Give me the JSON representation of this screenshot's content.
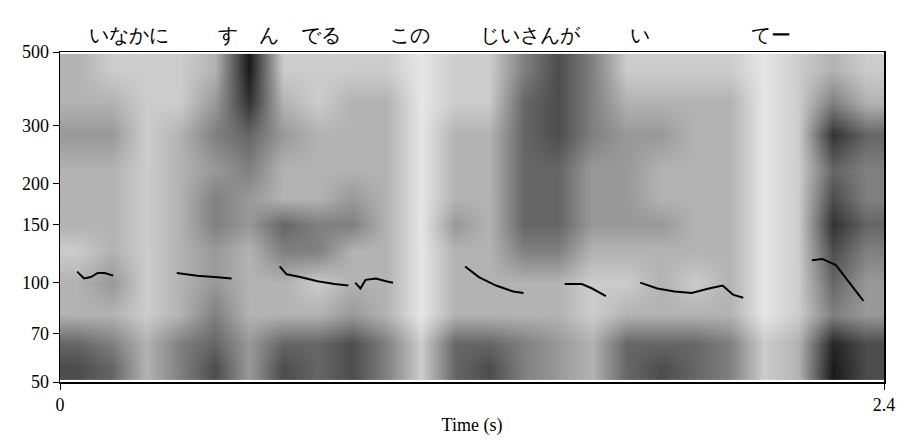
{
  "chart_data": {
    "type": "spectrogram",
    "x_label": "Time (s)",
    "xlim": [
      0,
      2.4
    ],
    "xticks": [
      0,
      2.4
    ],
    "ylim": [
      50,
      500
    ],
    "yticks": [
      50,
      70,
      100,
      150,
      200,
      300,
      500
    ],
    "log": "y",
    "color": "#000000",
    "annotations": [
      {
        "text": "いなかに",
        "x": 0.2
      },
      {
        "text": "す",
        "x": 0.49
      },
      {
        "text": "ん",
        "x": 0.61
      },
      {
        "text": "でる",
        "x": 0.76
      },
      {
        "text": "この",
        "x": 1.02
      },
      {
        "text": "じいさんが",
        "x": 1.37
      },
      {
        "text": "い",
        "x": 1.69
      },
      {
        "text": "てー",
        "x": 2.07
      }
    ],
    "x": [
      0.05,
      0.07,
      0.09,
      0.11,
      0.13,
      0.155,
      0.2,
      0.34,
      0.4,
      0.45,
      0.5,
      0.57,
      0.64,
      0.66,
      0.7,
      0.75,
      0.8,
      0.84,
      0.85,
      0.86,
      0.875,
      0.89,
      0.92,
      0.95,
      0.97,
      1.05,
      1.18,
      1.22,
      1.27,
      1.32,
      1.35,
      1.4,
      1.47,
      1.52,
      1.55,
      1.59,
      1.64,
      1.69,
      1.74,
      1.79,
      1.84,
      1.89,
      1.93,
      1.96,
      1.99,
      2.1,
      2.19,
      2.22,
      2.26,
      2.3,
      2.34
    ],
    "values": [
      108,
      103,
      104,
      107,
      107,
      105,
      null,
      107,
      105,
      104,
      103,
      null,
      112,
      106,
      104,
      101,
      99,
      98,
      null,
      100,
      96,
      102,
      103,
      101,
      100,
      null,
      112,
      104,
      98,
      94,
      93,
      null,
      99,
      99,
      96,
      91,
      null,
      100,
      96,
      94,
      93,
      96,
      98,
      92,
      90,
      null,
      117,
      118,
      113,
      100,
      88
    ],
    "spectrogram": {
      "times": [
        0.05,
        0.15,
        0.25,
        0.35,
        0.45,
        0.55,
        0.65,
        0.75,
        0.85,
        0.95,
        1.05,
        1.15,
        1.25,
        1.35,
        1.45,
        1.55,
        1.65,
        1.75,
        1.85,
        1.95,
        2.05,
        2.15,
        2.25,
        2.35
      ],
      "freqs": [
        55,
        65,
        80,
        100,
        125,
        150,
        180,
        220,
        280,
        350,
        440
      ],
      "zlim": [
        0,
        1
      ],
      "intensity": [
        [
          0.7,
          0.6,
          0.3,
          0.5,
          0.7,
          0.4,
          0.7,
          0.6,
          0.7,
          0.5,
          0.2,
          0.6,
          0.7,
          0.5,
          0.4,
          0.3,
          0.6,
          0.7,
          0.6,
          0.5,
          0.2,
          0.3,
          0.9,
          0.7
        ],
        [
          0.6,
          0.5,
          0.3,
          0.5,
          0.6,
          0.4,
          0.6,
          0.6,
          0.7,
          0.5,
          0.2,
          0.6,
          0.6,
          0.5,
          0.4,
          0.3,
          0.6,
          0.6,
          0.6,
          0.5,
          0.2,
          0.3,
          0.85,
          0.7
        ],
        [
          0.3,
          0.3,
          0.2,
          0.3,
          0.5,
          0.3,
          0.3,
          0.3,
          0.4,
          0.3,
          0.1,
          0.3,
          0.3,
          0.3,
          0.3,
          0.2,
          0.3,
          0.3,
          0.3,
          0.3,
          0.1,
          0.2,
          0.5,
          0.4
        ],
        [
          0.3,
          0.4,
          0.2,
          0.3,
          0.4,
          0.3,
          0.3,
          0.2,
          0.3,
          0.3,
          0.1,
          0.3,
          0.3,
          0.3,
          0.3,
          0.2,
          0.2,
          0.3,
          0.2,
          0.3,
          0.1,
          0.2,
          0.6,
          0.4
        ],
        [
          0.2,
          0.3,
          0.2,
          0.3,
          0.4,
          0.3,
          0.5,
          0.5,
          0.3,
          0.3,
          0.1,
          0.3,
          0.3,
          0.5,
          0.5,
          0.3,
          0.3,
          0.3,
          0.3,
          0.3,
          0.1,
          0.2,
          0.7,
          0.5
        ],
        [
          0.3,
          0.3,
          0.2,
          0.3,
          0.5,
          0.4,
          0.6,
          0.5,
          0.5,
          0.3,
          0.1,
          0.4,
          0.3,
          0.6,
          0.6,
          0.4,
          0.4,
          0.4,
          0.3,
          0.3,
          0.1,
          0.2,
          0.8,
          0.6
        ],
        [
          0.3,
          0.3,
          0.2,
          0.3,
          0.5,
          0.4,
          0.3,
          0.3,
          0.4,
          0.3,
          0.1,
          0.3,
          0.3,
          0.6,
          0.6,
          0.4,
          0.4,
          0.3,
          0.3,
          0.3,
          0.1,
          0.2,
          0.7,
          0.5
        ],
        [
          0.3,
          0.3,
          0.2,
          0.3,
          0.4,
          0.5,
          0.3,
          0.3,
          0.3,
          0.3,
          0.1,
          0.3,
          0.3,
          0.6,
          0.6,
          0.4,
          0.4,
          0.3,
          0.3,
          0.3,
          0.1,
          0.2,
          0.6,
          0.5
        ],
        [
          0.4,
          0.4,
          0.2,
          0.3,
          0.5,
          0.6,
          0.4,
          0.3,
          0.3,
          0.3,
          0.1,
          0.3,
          0.3,
          0.6,
          0.7,
          0.5,
          0.4,
          0.4,
          0.3,
          0.3,
          0.1,
          0.2,
          0.8,
          0.6
        ],
        [
          0.3,
          0.3,
          0.2,
          0.2,
          0.4,
          0.8,
          0.3,
          0.2,
          0.3,
          0.3,
          0.1,
          0.2,
          0.2,
          0.6,
          0.7,
          0.5,
          0.3,
          0.3,
          0.3,
          0.3,
          0.1,
          0.2,
          0.5,
          0.3
        ],
        [
          0.3,
          0.2,
          0.2,
          0.2,
          0.3,
          0.9,
          0.2,
          0.2,
          0.2,
          0.2,
          0.1,
          0.2,
          0.2,
          0.5,
          0.7,
          0.5,
          0.2,
          0.2,
          0.2,
          0.2,
          0.1,
          0.2,
          0.3,
          0.2
        ]
      ]
    }
  }
}
